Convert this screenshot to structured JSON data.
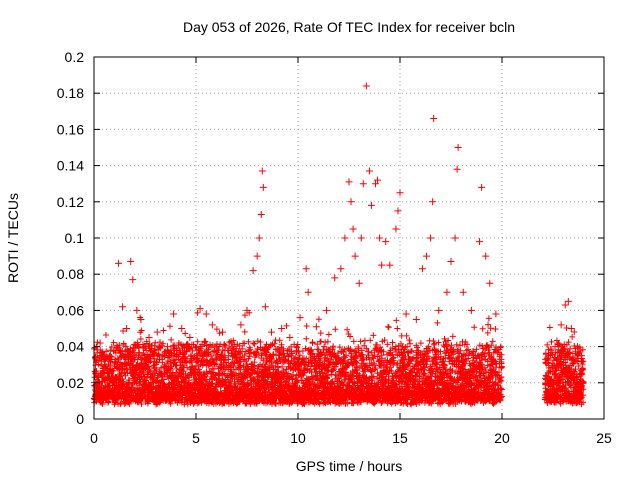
{
  "chart_data": {
    "type": "scatter",
    "title": "Day 053 of 2026, Rate Of TEC Index for receiver bcln",
    "xlabel": "GPS time / hours",
    "ylabel": "ROTI / TECUs",
    "xlim": [
      0,
      25
    ],
    "ylim": [
      0,
      0.2
    ],
    "x_ticks": [
      0,
      5,
      10,
      15,
      20,
      25
    ],
    "x_tick_labels": [
      "0",
      "5",
      "10",
      "15",
      "20",
      "25"
    ],
    "y_ticks": [
      0,
      0.02,
      0.04,
      0.06,
      0.08,
      0.1,
      0.12,
      0.14,
      0.16,
      0.18,
      0.2
    ],
    "y_tick_labels": [
      "0",
      "0.02",
      "0.04",
      "0.06",
      "0.08",
      "0.1",
      "0.12",
      "0.14",
      "0.16",
      "0.18",
      "0.2"
    ],
    "grid": true,
    "marker": "+",
    "color": "#ff0000",
    "series": [
      {
        "name": "ROTI",
        "data_gap_hours": [
          20.0,
          22.1
        ],
        "points": [
          [
            0.1,
            0.025
          ],
          [
            0.3,
            0.042
          ],
          [
            0.5,
            0.035
          ],
          [
            0.8,
            0.038
          ],
          [
            1.2,
            0.086
          ],
          [
            1.4,
            0.062
          ],
          [
            1.6,
            0.05
          ],
          [
            1.8,
            0.087
          ],
          [
            1.9,
            0.077
          ],
          [
            2.1,
            0.06
          ],
          [
            2.3,
            0.055
          ],
          [
            2.7,
            0.045
          ],
          [
            3.1,
            0.048
          ],
          [
            3.6,
            0.04
          ],
          [
            3.9,
            0.058
          ],
          [
            4.3,
            0.05
          ],
          [
            4.7,
            0.045
          ],
          [
            5.2,
            0.061
          ],
          [
            5.5,
            0.058
          ],
          [
            5.8,
            0.052
          ],
          [
            6.3,
            0.048
          ],
          [
            6.8,
            0.04
          ],
          [
            7.2,
            0.052
          ],
          [
            7.5,
            0.06
          ],
          [
            7.8,
            0.082
          ],
          [
            8.0,
            0.09
          ],
          [
            8.1,
            0.1
          ],
          [
            8.2,
            0.113
          ],
          [
            8.25,
            0.137
          ],
          [
            8.3,
            0.128
          ],
          [
            8.4,
            0.062
          ],
          [
            8.7,
            0.048
          ],
          [
            9.2,
            0.05
          ],
          [
            9.6,
            0.045
          ],
          [
            10.1,
            0.056
          ],
          [
            10.4,
            0.083
          ],
          [
            10.5,
            0.07
          ],
          [
            10.9,
            0.051
          ],
          [
            11.4,
            0.06
          ],
          [
            11.8,
            0.078
          ],
          [
            12.1,
            0.083
          ],
          [
            12.3,
            0.1
          ],
          [
            12.5,
            0.131
          ],
          [
            12.6,
            0.12
          ],
          [
            12.7,
            0.105
          ],
          [
            12.8,
            0.09
          ],
          [
            13.0,
            0.075
          ],
          [
            13.1,
            0.1
          ],
          [
            13.2,
            0.13
          ],
          [
            13.35,
            0.184
          ],
          [
            13.5,
            0.137
          ],
          [
            13.6,
            0.118
          ],
          [
            13.8,
            0.13
          ],
          [
            13.9,
            0.132
          ],
          [
            14.0,
            0.1
          ],
          [
            14.1,
            0.085
          ],
          [
            14.3,
            0.098
          ],
          [
            14.5,
            0.085
          ],
          [
            14.8,
            0.105
          ],
          [
            14.9,
            0.115
          ],
          [
            15.0,
            0.125
          ],
          [
            15.3,
            0.058
          ],
          [
            15.8,
            0.055
          ],
          [
            16.1,
            0.083
          ],
          [
            16.3,
            0.09
          ],
          [
            16.5,
            0.1
          ],
          [
            16.6,
            0.12
          ],
          [
            16.65,
            0.166
          ],
          [
            16.9,
            0.06
          ],
          [
            17.3,
            0.07
          ],
          [
            17.5,
            0.087
          ],
          [
            17.7,
            0.1
          ],
          [
            17.8,
            0.138
          ],
          [
            17.85,
            0.15
          ],
          [
            18.1,
            0.07
          ],
          [
            18.5,
            0.06
          ],
          [
            18.9,
            0.098
          ],
          [
            19.0,
            0.128
          ],
          [
            19.2,
            0.09
          ],
          [
            19.4,
            0.075
          ],
          [
            19.7,
            0.058
          ],
          [
            22.3,
            0.035
          ],
          [
            22.6,
            0.04
          ],
          [
            22.9,
            0.052
          ],
          [
            23.1,
            0.063
          ],
          [
            23.25,
            0.065
          ],
          [
            23.4,
            0.05
          ],
          [
            23.7,
            0.04
          ],
          [
            23.9,
            0.035
          ]
        ]
      }
    ]
  }
}
